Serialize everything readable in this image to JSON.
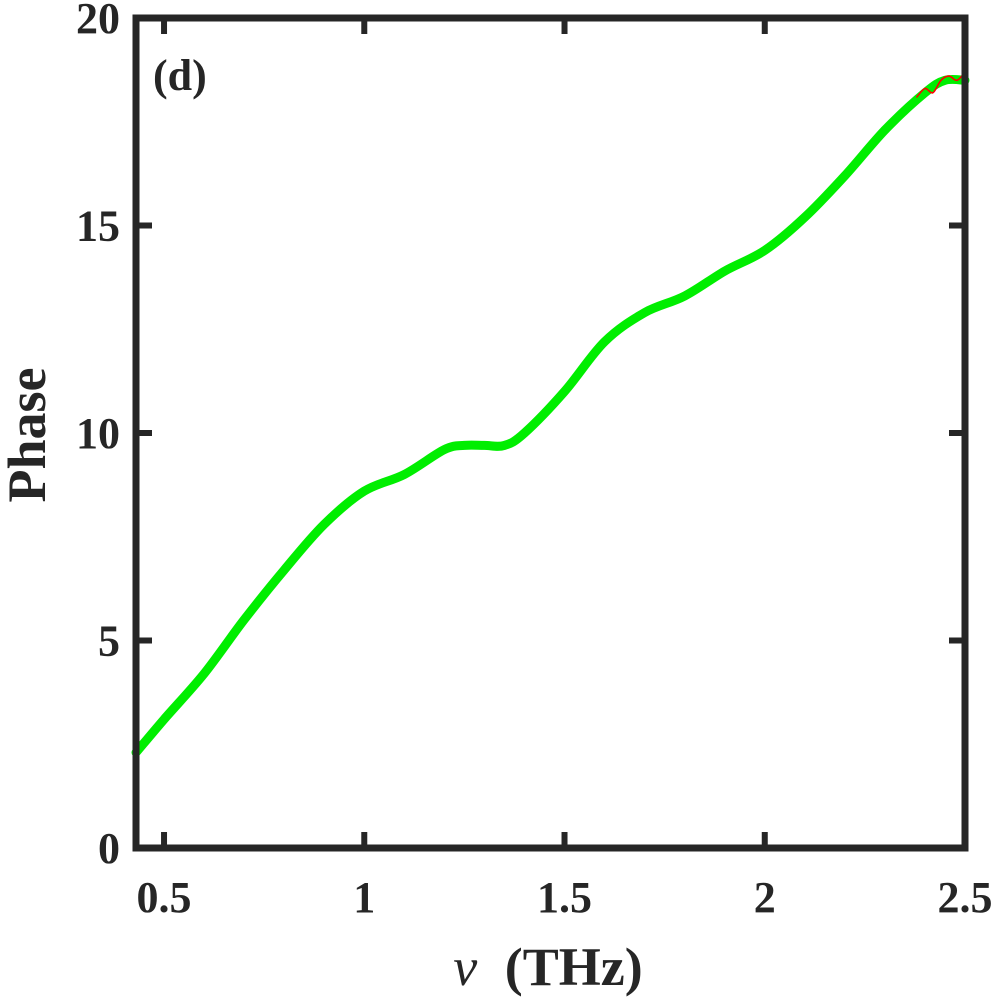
{
  "chart_data": {
    "type": "line",
    "title": "",
    "panel_label": "(d)",
    "xlabel_symbol": "ν",
    "xlabel_unit": "(THz)",
    "ylabel": "Phase",
    "xlim": [
      0.43,
      2.5
    ],
    "ylim": [
      0,
      20
    ],
    "xticks": [
      0.5,
      1,
      1.5,
      2,
      2.5
    ],
    "xtick_labels": [
      "0.5",
      "1",
      "1.5",
      "2",
      "2.5"
    ],
    "yticks": [
      0,
      5,
      10,
      15,
      20
    ],
    "ytick_labels": [
      "0",
      "5",
      "10",
      "15",
      "20"
    ],
    "grid": false,
    "series": [
      {
        "color": "#00ee00",
        "x": [
          0.43,
          0.5,
          0.6,
          0.7,
          0.8,
          0.9,
          1.0,
          1.1,
          1.2,
          1.25,
          1.3,
          1.35,
          1.4,
          1.5,
          1.6,
          1.7,
          1.8,
          1.9,
          2.0,
          2.1,
          2.2,
          2.3,
          2.4,
          2.45,
          2.5
        ],
        "y": [
          2.3,
          3.1,
          4.2,
          5.5,
          6.7,
          7.8,
          8.6,
          9.0,
          9.6,
          9.7,
          9.7,
          9.7,
          10.0,
          11.0,
          12.2,
          12.9,
          13.3,
          13.9,
          14.4,
          15.2,
          16.2,
          17.3,
          18.2,
          18.5,
          18.5
        ]
      },
      {
        "color": "#ff0000",
        "x": [
          2.38,
          2.4,
          2.42,
          2.44,
          2.46,
          2.48,
          2.5
        ],
        "y": [
          18.1,
          18.3,
          18.2,
          18.5,
          18.6,
          18.5,
          18.7
        ]
      }
    ]
  }
}
